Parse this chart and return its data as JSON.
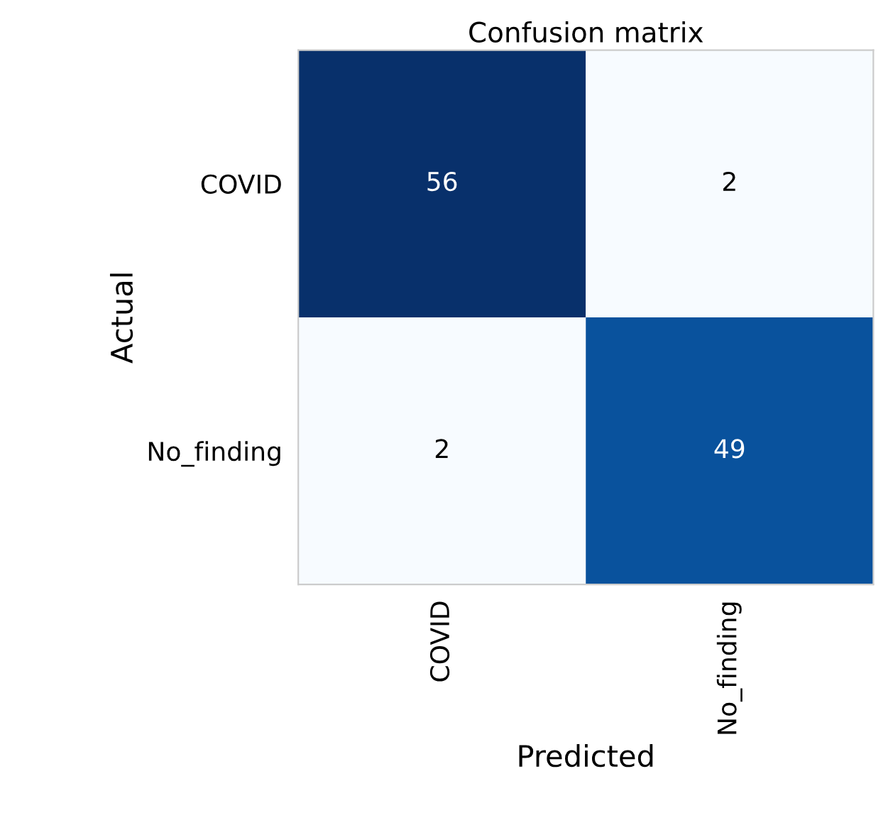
{
  "chart_data": {
    "type": "heatmap",
    "title": "Confusion matrix",
    "xlabel": "Predicted",
    "ylabel": "Actual",
    "categories": [
      "COVID",
      "No_finding"
    ],
    "y_categories": [
      "COVID",
      "No_finding"
    ],
    "cells": [
      [
        56,
        2
      ],
      [
        2,
        49
      ]
    ],
    "data_labels": true,
    "grid": false
  }
}
